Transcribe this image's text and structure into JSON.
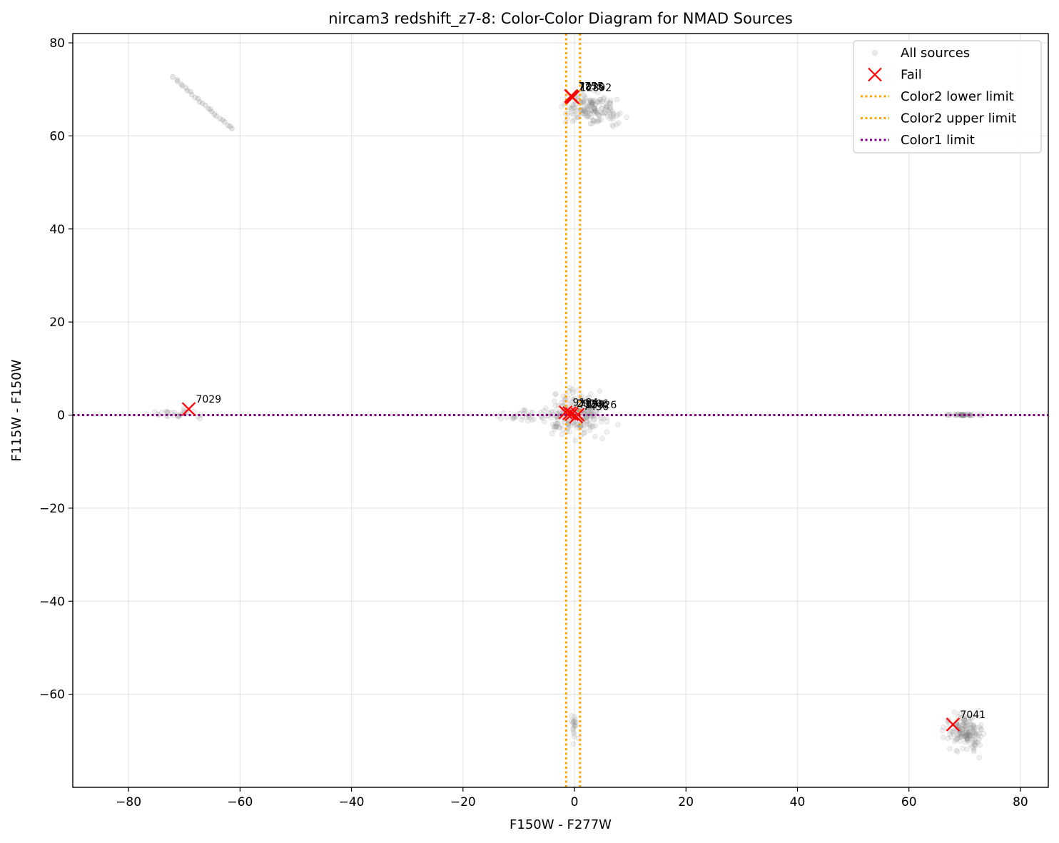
{
  "chart_data": {
    "type": "scatter",
    "title": "nircam3 redshift_z7-8: Color-Color Diagram for NMAD Sources",
    "xlabel": "F150W - F277W",
    "ylabel": "F115W - F150W",
    "xlim": [
      -90,
      85
    ],
    "ylim": [
      -80,
      82
    ],
    "xticks": [
      -80,
      -60,
      -40,
      -20,
      0,
      20,
      40,
      60,
      80
    ],
    "yticks": [
      -60,
      -40,
      -20,
      0,
      20,
      40,
      60,
      80
    ],
    "xtick_labels": [
      "−80",
      "−60",
      "−40",
      "−20",
      "0",
      "20",
      "40",
      "60",
      "80"
    ],
    "ytick_labels": [
      "−60",
      "−40",
      "−20",
      "0",
      "20",
      "40",
      "60",
      "80"
    ],
    "grid": true,
    "legend_position": "top-right",
    "colors": {
      "all_sources": "#808080",
      "fail": "#ff0000",
      "color2_limit": "#ffa500",
      "color1_limit": "#800080"
    },
    "series": [
      {
        "name": "All sources",
        "kind": "points",
        "clusters": [
          {
            "center": [
              0,
              0
            ],
            "spread": [
              4,
              3
            ],
            "count": 220
          },
          {
            "center": [
              3,
              66
            ],
            "spread": [
              3.5,
              2.2
            ],
            "count": 160
          },
          {
            "center": [
              70,
              -68
            ],
            "spread": [
              2.5,
              2.5
            ],
            "count": 160
          },
          {
            "center": [
              -8,
              0
            ],
            "spread": [
              3,
              0.8
            ],
            "count": 30
          },
          {
            "center": [
              -71,
              0.3
            ],
            "spread": [
              3,
              0.8
            ],
            "count": 30
          },
          {
            "center": [
              69.5,
              0
            ],
            "spread": [
              2.6,
              0.12
            ],
            "count": 45
          },
          {
            "center": [
              0,
              -67
            ],
            "spread": [
              0.3,
              2.5
            ],
            "count": 20
          }
        ],
        "line_segment": {
          "from": [
            -72,
            72.5
          ],
          "to": [
            -61.5,
            61.5
          ],
          "count": 25
        }
      },
      {
        "name": "Fail",
        "kind": "x-markers",
        "points": [
          {
            "x": -69.2,
            "y": 1.3,
            "label": "7029"
          },
          {
            "x": 67.9,
            "y": -66.5,
            "label": "7041"
          },
          {
            "x": -0.6,
            "y": 68.6,
            "label": "7755"
          },
          {
            "x": -0.3,
            "y": 68.3,
            "label": "12892"
          },
          {
            "x": -0.5,
            "y": 68.4,
            "label": "7876"
          },
          {
            "x": -1.6,
            "y": 0.6,
            "label": "9184"
          },
          {
            "x": -0.5,
            "y": 0.2,
            "label": "7334"
          },
          {
            "x": 0.3,
            "y": -0.3,
            "label": "7456"
          },
          {
            "x": -0.9,
            "y": 0.4,
            "label": "20006"
          },
          {
            "x": 0.6,
            "y": 0.1,
            "label": "12526"
          }
        ]
      },
      {
        "name": "Color2 lower limit",
        "kind": "vline",
        "x": -1.5
      },
      {
        "name": "Color2 upper limit",
        "kind": "vline",
        "x": 1.0
      },
      {
        "name": "Color1 limit",
        "kind": "hline",
        "y": 0
      }
    ]
  }
}
